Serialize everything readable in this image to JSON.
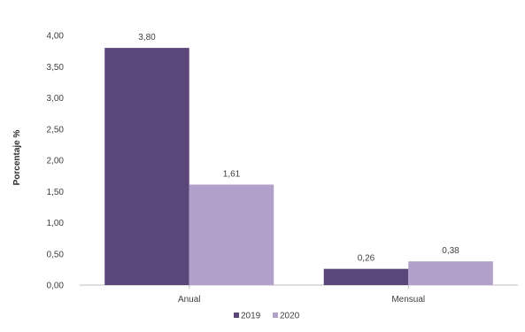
{
  "chart_data": {
    "type": "bar",
    "title": "",
    "xlabel": "",
    "ylabel": "Porcentaje %",
    "categories": [
      "Anual",
      "Mensual"
    ],
    "series": [
      {
        "name": "2019",
        "values": [
          3.8,
          0.26
        ],
        "color": "#5b4679"
      },
      {
        "name": "2020",
        "values": [
          1.61,
          0.38
        ],
        "color": "#b2a0ca"
      }
    ],
    "data_labels": [
      [
        "3,80",
        "0,26"
      ],
      [
        "1,61",
        "0,38"
      ]
    ],
    "ylim": [
      0,
      4
    ],
    "yticks": [
      "0,00",
      "0,50",
      "1,00",
      "1,50",
      "2,00",
      "2,50",
      "3,00",
      "3,50",
      "4,00"
    ],
    "ytick_values": [
      0,
      0.5,
      1,
      1.5,
      2,
      2.5,
      3,
      3.5,
      4
    ],
    "grid": false,
    "legend_position": "bottom-center"
  }
}
